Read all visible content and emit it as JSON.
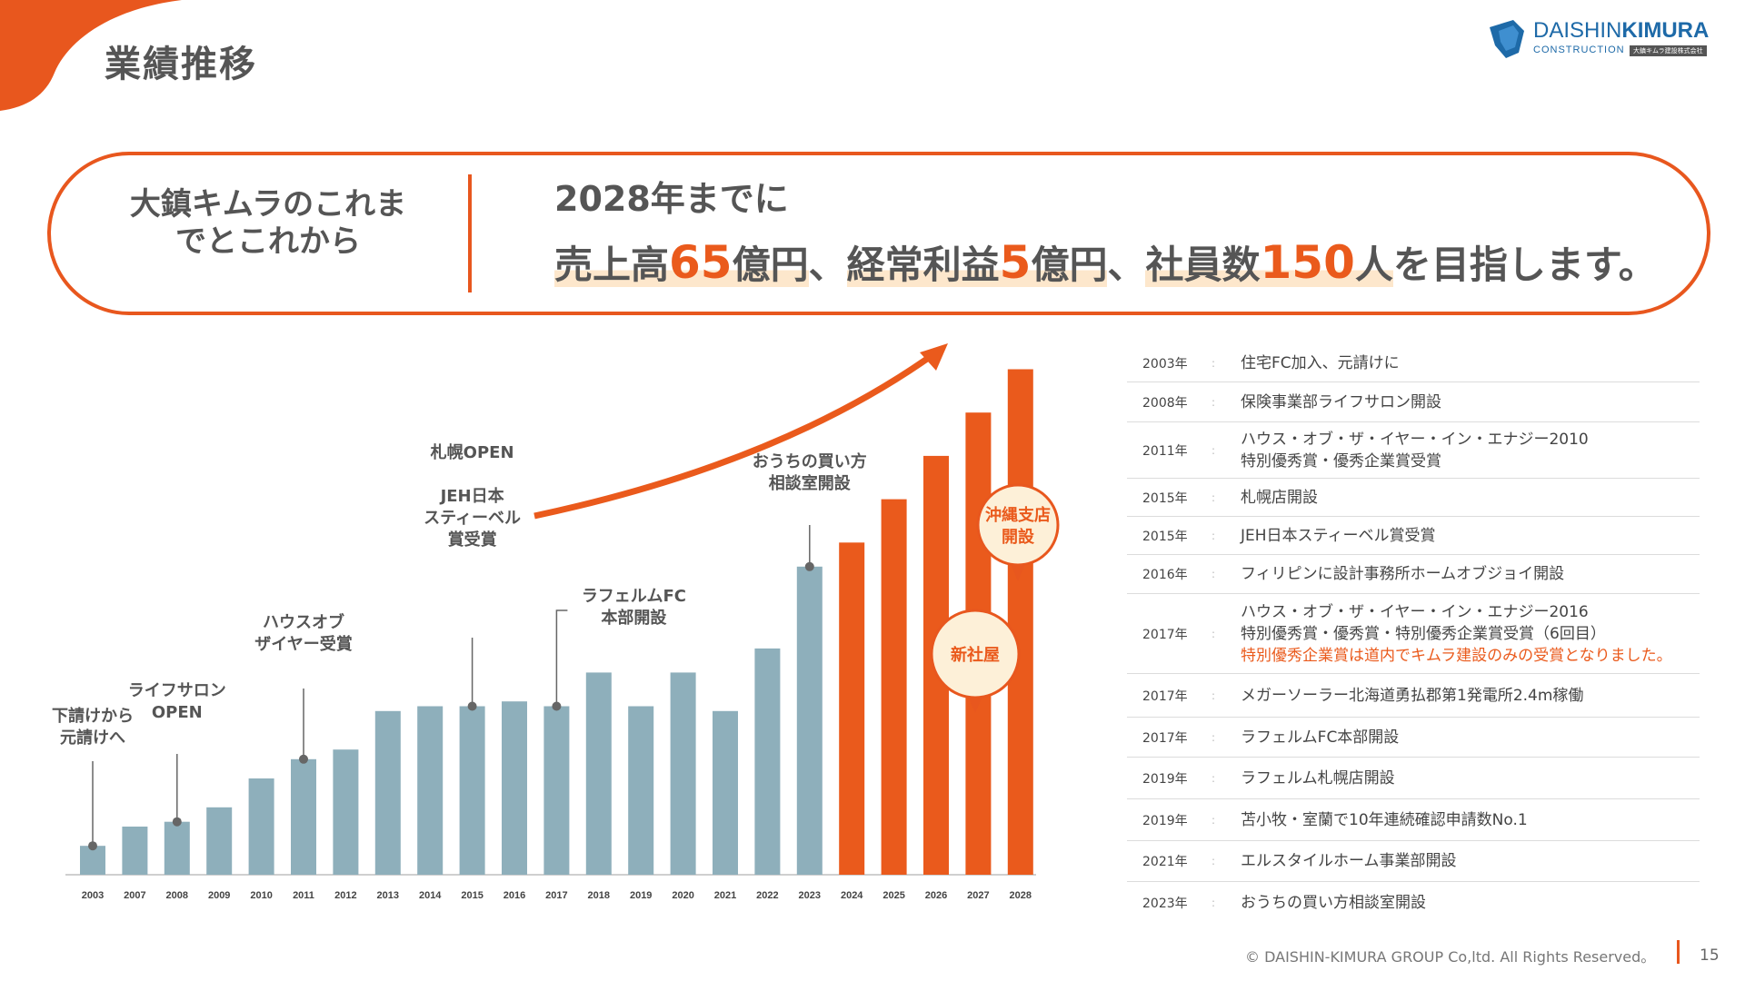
{
  "page": {
    "title": "業績推移",
    "page_number": "15"
  },
  "logo": {
    "main_a": "DAISHIN",
    "main_b": "KIMURA",
    "sub": "CONSTRUCTION",
    "jp": "大鎮キムラ建設株式会社"
  },
  "banner": {
    "left_text": "大鎮キムラのこれまでとこれから",
    "headline": "2028年までに",
    "goal_parts": {
      "p1": "売上高",
      "n1": "65",
      "p2": "億円",
      "sep1": "、",
      "p3": "経常利益",
      "n2": "5",
      "p4": "億円",
      "sep2": "、",
      "p5": "社員数",
      "n3": "150",
      "p6": "人",
      "tail": "を目指します。"
    }
  },
  "chart_data": {
    "type": "bar",
    "categories": [
      "2003",
      "2007",
      "2008",
      "2009",
      "2010",
      "2011",
      "2012",
      "2013",
      "2014",
      "2015",
      "2016",
      "2017",
      "2018",
      "2019",
      "2020",
      "2021",
      "2022",
      "2023",
      "2024",
      "2025",
      "2026",
      "2027",
      "2028"
    ],
    "values": [
      6,
      10,
      11,
      14,
      20,
      24,
      26,
      34,
      35,
      35,
      36,
      35,
      42,
      35,
      42,
      34,
      47,
      64,
      69,
      78,
      87,
      96,
      105
    ],
    "series_color": [
      "past",
      "past",
      "past",
      "past",
      "past",
      "past",
      "past",
      "past",
      "past",
      "past",
      "past",
      "past",
      "past",
      "past",
      "past",
      "past",
      "past",
      "past",
      "plan",
      "plan",
      "plan",
      "plan",
      "plan"
    ],
    "colors": {
      "past": "#8eafbb",
      "plan": "#ea5a1c",
      "arrow": "#ea5a1c",
      "bubble_fill": "#fdf0d8"
    },
    "annotations": [
      {
        "category": "2003",
        "lines": [
          "下請けから",
          "元請けへ"
        ]
      },
      {
        "category": "2008",
        "lines": [
          "ライフサロン",
          "OPEN"
        ]
      },
      {
        "category": "2011",
        "lines": [
          "ハウスオブ",
          "ザイヤー受賞"
        ]
      },
      {
        "category": "2015",
        "lines": [
          "札幌OPEN",
          "",
          "JEH日本",
          "スティーベル",
          "賞受賞"
        ]
      },
      {
        "category": "2017",
        "lines": [
          "ラフェルムFC",
          "本部開設"
        ]
      },
      {
        "category": "2023",
        "lines": [
          "おうちの買い方",
          "相談室開設"
        ]
      }
    ],
    "bubbles": [
      {
        "lines": [
          "沖縄支店",
          "開設"
        ]
      },
      {
        "lines": [
          "新社屋"
        ]
      }
    ]
  },
  "timeline": [
    {
      "year": "2003年",
      "sep": ":",
      "lines": [
        "住宅FC加入、元請けに"
      ]
    },
    {
      "year": "2008年",
      "sep": ":",
      "lines": [
        "保険事業部ライフサロン開設"
      ]
    },
    {
      "year": "2011年",
      "sep": ":",
      "lines": [
        "ハウス・オブ・ザ・イヤー・イン・エナジー2010",
        "特別優秀賞・優秀企業賞受賞"
      ]
    },
    {
      "year": "2015年",
      "sep": ":",
      "lines": [
        "札幌店開設"
      ]
    },
    {
      "year": "2015年",
      "sep": ":",
      "lines": [
        "JEH日本スティーベル賞受賞"
      ]
    },
    {
      "year": "2016年",
      "sep": ":",
      "lines": [
        "フィリピンに設計事務所ホームオブジョイ開設"
      ]
    },
    {
      "year": "2017年",
      "sep": ":",
      "lines": [
        "ハウス・オブ・ザ・イヤー・イン・エナジー2016",
        "特別優秀賞・優秀賞・特別優秀企業賞受賞（6回目）"
      ],
      "accent": "特別優秀企業賞は道内でキムラ建設のみの受賞となりました。"
    },
    {
      "year": "2017年",
      "sep": ":",
      "lines": [
        "メガーソーラー北海道勇払郡第1発電所2.4m稼働"
      ]
    },
    {
      "year": "2017年",
      "sep": ":",
      "lines": [
        "ラフェルムFC本部開設"
      ]
    },
    {
      "year": "2019年",
      "sep": ":",
      "lines": [
        "ラフェルム札幌店開設"
      ]
    },
    {
      "year": "2019年",
      "sep": ":",
      "lines": [
        "苫小牧・室蘭で10年連続確認申請数No.1"
      ]
    },
    {
      "year": "2021年",
      "sep": ":",
      "lines": [
        "エルスタイルホーム事業部開設"
      ]
    },
    {
      "year": "2023年",
      "sep": ":",
      "lines": [
        "おうちの買い方相談室開設"
      ]
    }
  ],
  "footer": {
    "copyright": "© DAISHIN-KIMURA GROUP Co,ltd. All Rights Reserved。"
  }
}
